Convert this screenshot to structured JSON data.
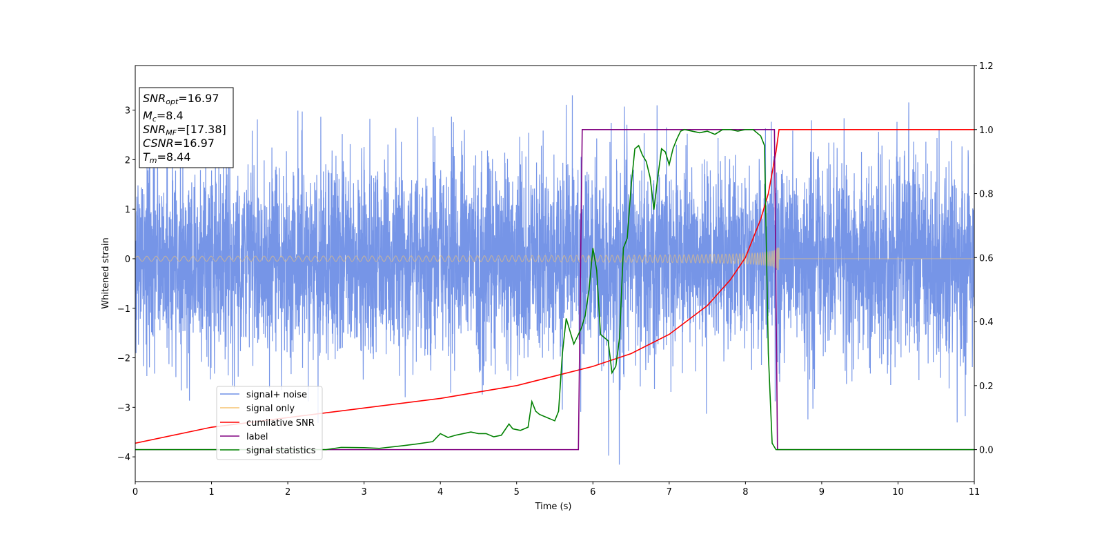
{
  "chart_data": {
    "type": "line",
    "title": "",
    "xlabel": "Time (s)",
    "ylabel": "Whitened strain",
    "y2label": "",
    "xlim": [
      0,
      11
    ],
    "ylim": [
      -4.5,
      3.9
    ],
    "y2lim": [
      -0.1,
      1.2
    ],
    "grid": false,
    "legend_position": "lower-left",
    "x_ticks": [
      "0",
      "1",
      "2",
      "3",
      "4",
      "5",
      "6",
      "7",
      "8",
      "9",
      "10",
      "11"
    ],
    "y_ticks": [
      "−4",
      "−3",
      "−2",
      "−1",
      "0",
      "1",
      "2",
      "3"
    ],
    "y2_ticks": [
      "0.0",
      "0.2",
      "0.4",
      "0.6",
      "0.8",
      "1.0",
      "1.2"
    ],
    "stats_box": {
      "snr_opt": {
        "name": "SNR",
        "sub": "opt",
        "value": "=16.97"
      },
      "mc": {
        "name": "M",
        "sub": "c",
        "value": "=8.4"
      },
      "snr_mf": {
        "name": "SNR",
        "sub": "MF",
        "value": "=[17.38]"
      },
      "csnr": {
        "name": "CSNR",
        "value": "=16.97"
      },
      "tm": {
        "name": "T",
        "sub": "m",
        "value": "=8.44"
      }
    },
    "series": [
      {
        "name": "signal+ noise",
        "color": "#6f8fe6",
        "axis": "left",
        "description_type": "noisy",
        "noise_sigma": 1.0,
        "extreme_range": [
          -4.2,
          3.55
        ]
      },
      {
        "name": "signal only",
        "color": "#f5c470",
        "axis": "left",
        "chirp": {
          "start": 0,
          "merger": 8.44,
          "amp_start": 0.05,
          "amp_end": 1.0
        }
      },
      {
        "name": "cumilative SNR",
        "color": "#ff0000",
        "axis": "right",
        "x": [
          0,
          1,
          2,
          3,
          4,
          5,
          5.5,
          6,
          6.5,
          7,
          7.5,
          7.8,
          8.0,
          8.2,
          8.3,
          8.4,
          8.44,
          11
        ],
        "y": [
          0.02,
          0.07,
          0.1,
          0.13,
          0.16,
          0.2,
          0.23,
          0.26,
          0.3,
          0.36,
          0.45,
          0.53,
          0.6,
          0.72,
          0.8,
          0.93,
          1.0,
          1.0
        ]
      },
      {
        "name": "label",
        "color": "#800080",
        "axis": "right",
        "x": [
          0,
          5.81,
          5.86,
          8.38,
          8.42,
          11
        ],
        "y": [
          0,
          0,
          1,
          1,
          0,
          0
        ]
      },
      {
        "name": "signal statistics",
        "color": "#008000",
        "axis": "right",
        "x": [
          0,
          2.0,
          2.5,
          2.7,
          3.0,
          3.2,
          3.5,
          3.7,
          3.9,
          4.0,
          4.1,
          4.2,
          4.3,
          4.4,
          4.5,
          4.6,
          4.7,
          4.8,
          4.9,
          4.95,
          5.05,
          5.15,
          5.2,
          5.25,
          5.3,
          5.4,
          5.45,
          5.5,
          5.55,
          5.6,
          5.65,
          5.75,
          5.85,
          5.9,
          5.95,
          6.0,
          6.05,
          6.1,
          6.2,
          6.25,
          6.3,
          6.35,
          6.4,
          6.45,
          6.5,
          6.55,
          6.6,
          6.65,
          6.7,
          6.75,
          6.8,
          6.85,
          6.9,
          6.95,
          7.0,
          7.05,
          7.1,
          7.15,
          7.2,
          7.3,
          7.4,
          7.5,
          7.6,
          7.7,
          7.8,
          7.9,
          8.0,
          8.1,
          8.2,
          8.25,
          8.3,
          8.35,
          8.4,
          8.45,
          8.5,
          11
        ],
        "y": [
          0,
          0,
          0,
          0.007,
          0.006,
          0.004,
          0.012,
          0.018,
          0.025,
          0.05,
          0.038,
          0.045,
          0.05,
          0.055,
          0.05,
          0.05,
          0.04,
          0.045,
          0.08,
          0.065,
          0.06,
          0.07,
          0.15,
          0.12,
          0.11,
          0.1,
          0.095,
          0.09,
          0.12,
          0.3,
          0.41,
          0.33,
          0.38,
          0.42,
          0.5,
          0.63,
          0.56,
          0.36,
          0.34,
          0.24,
          0.26,
          0.35,
          0.63,
          0.66,
          0.82,
          0.94,
          0.95,
          0.92,
          0.9,
          0.85,
          0.75,
          0.85,
          0.94,
          0.93,
          0.89,
          0.94,
          0.97,
          0.995,
          1.0,
          0.995,
          0.99,
          0.995,
          0.985,
          1.0,
          1.0,
          0.995,
          1.0,
          1.0,
          0.98,
          0.95,
          0.3,
          0.02,
          0.0,
          0.0,
          0.0,
          0.0
        ]
      }
    ]
  }
}
